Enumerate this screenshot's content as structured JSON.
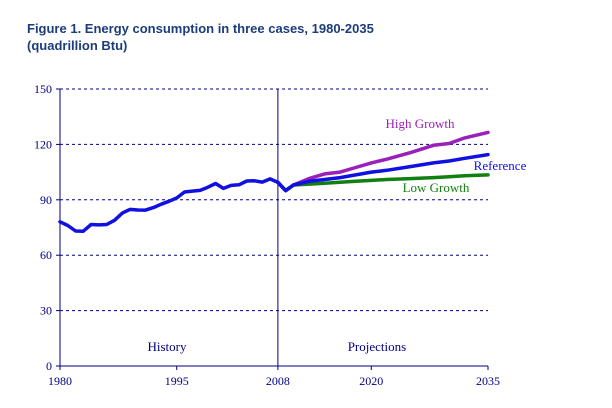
{
  "figure": {
    "title_line1": "Figure 1.  Energy consumption in three cases, 1980-2035",
    "title_line2": "(quadrillion Btu)"
  },
  "chart_data": {
    "type": "line",
    "title": "Figure 1.  Energy consumption in three cases, 1980-2035",
    "subtitle": "(quadrillion Btu)",
    "xlabel": "",
    "ylabel": "",
    "xlim": [
      1980,
      2035
    ],
    "ylim": [
      0,
      150
    ],
    "xticks": [
      1980,
      1995,
      2008,
      2020,
      2035
    ],
    "yticks": [
      0,
      30,
      60,
      90,
      120,
      150
    ],
    "grid": "horizontal dashed",
    "divider_year": 2008,
    "region_labels": {
      "history": "History",
      "projections": "Projections"
    },
    "colors": {
      "axis": "#000080",
      "history": "#1010e0",
      "high": "#9920b8",
      "reference": "#1010e0",
      "low": "#108010"
    },
    "series": [
      {
        "name": "History",
        "x": [
          1980,
          1981,
          1982,
          1983,
          1984,
          1985,
          1986,
          1987,
          1988,
          1989,
          1990,
          1991,
          1992,
          1993,
          1994,
          1995,
          1996,
          1997,
          1998,
          1999,
          2000,
          2001,
          2002,
          2003,
          2004,
          2005,
          2006,
          2007,
          2008,
          2009,
          2010
        ],
        "values": [
          78.1,
          76.1,
          73.1,
          73.0,
          76.6,
          76.4,
          76.6,
          78.9,
          82.8,
          84.8,
          84.5,
          84.4,
          85.8,
          87.6,
          89.2,
          91.0,
          94.2,
          94.7,
          95.1,
          96.8,
          98.8,
          96.2,
          97.8,
          98.1,
          100.2,
          100.3,
          99.6,
          101.3,
          99.4,
          95.0,
          98.0
        ]
      },
      {
        "name": "High Growth",
        "x": [
          2008,
          2009,
          2010,
          2012,
          2014,
          2016,
          2018,
          2020,
          2022,
          2025,
          2028,
          2030,
          2032,
          2035
        ],
        "values": [
          99.4,
          95.0,
          98.0,
          101.5,
          104.0,
          105.0,
          107.5,
          110.0,
          112.0,
          115.5,
          119.5,
          120.5,
          123.5,
          126.5
        ]
      },
      {
        "name": "Reference",
        "x": [
          2008,
          2009,
          2010,
          2012,
          2014,
          2016,
          2018,
          2020,
          2022,
          2025,
          2028,
          2030,
          2032,
          2035
        ],
        "values": [
          99.4,
          95.0,
          98.0,
          100.0,
          101.0,
          102.0,
          103.5,
          105.0,
          106.0,
          108.0,
          110.0,
          111.0,
          112.5,
          114.5
        ]
      },
      {
        "name": "Low Growth",
        "x": [
          2008,
          2009,
          2010,
          2012,
          2014,
          2016,
          2018,
          2020,
          2022,
          2025,
          2028,
          2030,
          2032,
          2035
        ],
        "values": [
          99.4,
          95.0,
          98.0,
          98.5,
          99.0,
          99.5,
          100.0,
          100.5,
          101.0,
          101.5,
          102.0,
          102.5,
          103.0,
          103.5
        ]
      }
    ],
    "annotations": {
      "high": "High Growth",
      "reference": "Reference",
      "low": "Low Growth"
    }
  }
}
